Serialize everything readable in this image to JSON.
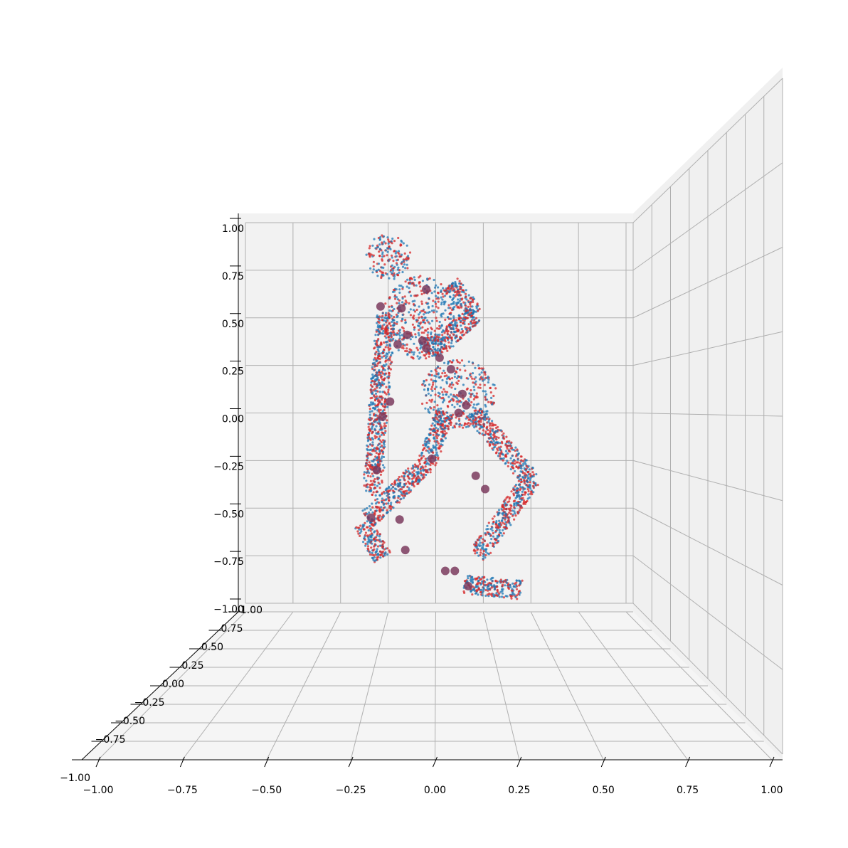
{
  "chart_data": {
    "type": "scatter",
    "projection": "3d",
    "title": "",
    "xlabel": "",
    "ylabel": "",
    "zlabel": "",
    "xlim": [
      -1.0,
      1.0
    ],
    "ylim": [
      -1.0,
      1.0
    ],
    "zlim": [
      -1.0,
      1.0
    ],
    "grid": true,
    "legend": "none",
    "x_ticks": [
      "−1.00",
      "−0.75",
      "−0.50",
      "−0.25",
      "0.00",
      "0.25",
      "0.50",
      "0.75",
      "1.00"
    ],
    "y_ticks": [
      "−1.00",
      "−0.75",
      "−0.50",
      "−0.25",
      "0.00",
      "0.25",
      "0.50",
      "0.75",
      "1.00"
    ],
    "z_ticks": [
      "−1.00",
      "−0.75",
      "−0.50",
      "−0.25",
      "0.00",
      "0.25",
      "0.50",
      "0.75",
      "1.00"
    ],
    "colors": {
      "pane": "#f2f2f2",
      "pane_side": "#f5f5f5",
      "grid": "#b0b0b0",
      "series_a": "#1f77b4",
      "series_b": "#d62728",
      "joints": "#7b3b5e"
    },
    "series": [
      {
        "color": "#1f77b4",
        "marker": "point-cloud",
        "description_points": []
      },
      {
        "color": "#d62728",
        "marker": "point-cloud",
        "description_points": []
      }
    ],
    "joints_xz": [
      [
        -0.05,
        0.65
      ],
      [
        -0.18,
        0.55
      ],
      [
        -0.29,
        0.56
      ],
      [
        -0.15,
        0.41
      ],
      [
        -0.07,
        0.38
      ],
      [
        -0.2,
        0.36
      ],
      [
        0.08,
        0.23
      ],
      [
        -0.05,
        0.34
      ],
      [
        0.14,
        0.1
      ],
      [
        0.16,
        0.04
      ],
      [
        -0.24,
        0.06
      ],
      [
        -0.31,
        -0.3
      ],
      [
        -0.02,
        -0.24
      ],
      [
        -0.19,
        -0.56
      ],
      [
        0.21,
        -0.33
      ],
      [
        0.1,
        -0.83
      ],
      [
        0.05,
        -0.83
      ],
      [
        -0.16,
        -0.72
      ],
      [
        0.26,
        -0.4
      ],
      [
        0.17,
        -0.91
      ],
      [
        -0.34,
        -0.55
      ],
      [
        -0.28,
        -0.02
      ],
      [
        0.12,
        0.0
      ],
      [
        0.02,
        0.29
      ]
    ],
    "body_segments_xz": [
      {
        "part": "head",
        "center": [
          -0.25,
          0.82
        ],
        "rx": 0.12,
        "rz": 0.12
      },
      {
        "part": "torso",
        "center": [
          -0.08,
          0.5
        ],
        "rx": 0.2,
        "rz": 0.22
      },
      {
        "part": "pelvis",
        "center": [
          0.12,
          0.1
        ],
        "rx": 0.2,
        "rz": 0.18
      },
      {
        "part": "upper-arm-left",
        "from": [
          -0.26,
          0.52
        ],
        "to": [
          -0.3,
          0.05
        ]
      },
      {
        "part": "forearm-left",
        "from": [
          -0.3,
          0.05
        ],
        "to": [
          -0.32,
          -0.3
        ]
      },
      {
        "part": "hand-left",
        "center": [
          -0.33,
          -0.35
        ],
        "rx": 0.05,
        "rz": 0.09
      },
      {
        "part": "upper-arm-right",
        "from": [
          0.08,
          0.68
        ],
        "to": [
          0.2,
          0.52
        ]
      },
      {
        "part": "forearm-right",
        "from": [
          0.2,
          0.52
        ],
        "to": [
          0.02,
          0.35
        ]
      },
      {
        "part": "hand-right",
        "center": [
          -0.02,
          0.35
        ],
        "rx": 0.07,
        "rz": 0.06
      },
      {
        "part": "thigh-left",
        "from": [
          0.05,
          0.0
        ],
        "to": [
          -0.05,
          -0.27
        ]
      },
      {
        "part": "shin-left",
        "from": [
          -0.05,
          -0.27
        ],
        "to": [
          -0.36,
          -0.56
        ]
      },
      {
        "part": "foot-left",
        "from": [
          -0.38,
          -0.58
        ],
        "to": [
          -0.28,
          -0.76
        ]
      },
      {
        "part": "thigh-right",
        "from": [
          0.2,
          -0.0
        ],
        "to": [
          0.5,
          -0.35
        ]
      },
      {
        "part": "shin-right",
        "from": [
          0.5,
          -0.35
        ],
        "to": [
          0.22,
          -0.75
        ]
      },
      {
        "part": "foot-right",
        "from": [
          0.15,
          -0.9
        ],
        "to": [
          0.45,
          -0.93
        ]
      }
    ]
  }
}
